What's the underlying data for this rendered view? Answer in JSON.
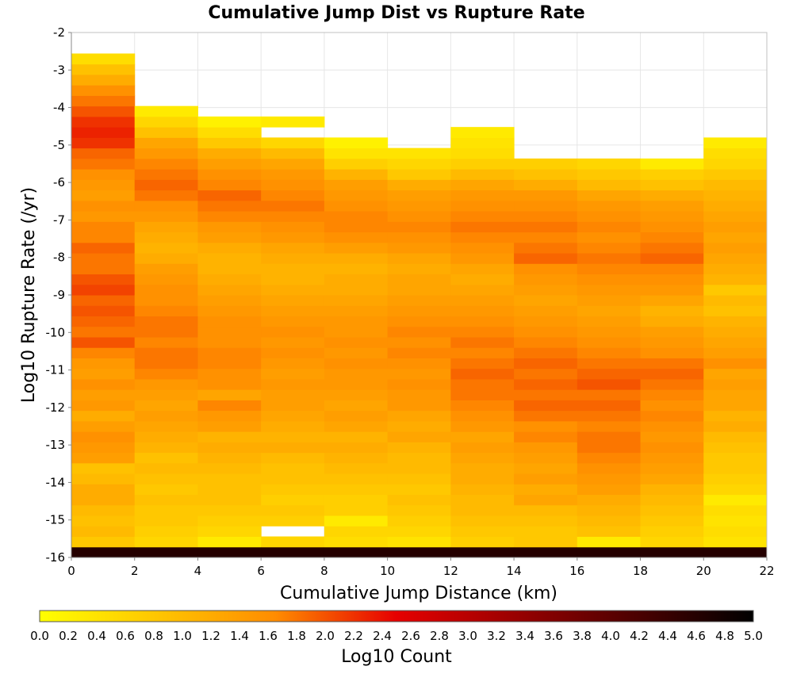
{
  "chart_data": {
    "type": "heatmap",
    "title": "Cumulative Jump Dist vs Rupture Rate",
    "xlabel": "Cumulative Jump Distance (km)",
    "ylabel": "Log10 Rupture Rate (/yr)",
    "colorbar_label": "Log10 Count",
    "xlim": [
      0,
      22
    ],
    "ylim": [
      -16,
      -2
    ],
    "xticks": [
      "0",
      "2",
      "4",
      "6",
      "8",
      "10",
      "12",
      "14",
      "16",
      "18",
      "20",
      "22"
    ],
    "yticks": [
      "-2",
      "-3",
      "-4",
      "-5",
      "-6",
      "-7",
      "-8",
      "-9",
      "-10",
      "-11",
      "-12",
      "-13",
      "-14",
      "-15",
      "-16"
    ],
    "colorbar_ticks": [
      "0.0",
      "0.2",
      "0.4",
      "0.6",
      "0.8",
      "1.0",
      "1.2",
      "1.4",
      "1.6",
      "1.8",
      "2.0",
      "2.2",
      "2.4",
      "2.6",
      "2.8",
      "3.0",
      "3.2",
      "3.4",
      "3.6",
      "3.8",
      "4.0",
      "4.2",
      "4.4",
      "4.6",
      "4.8",
      "5.0"
    ],
    "colorbar_range": [
      0,
      5
    ],
    "colorscale": [
      "#ffff00",
      "#ff8c00",
      "#e60000",
      "#000000"
    ],
    "grid": true,
    "x_bin_edges": [
      0,
      2,
      4,
      6,
      8,
      10,
      12,
      14,
      16,
      18,
      20,
      22
    ],
    "y_bin_width": 0.28,
    "y_bins_from": -16,
    "z_columns": [
      [
        4.6,
        0.8,
        1.0,
        0.9,
        1.0,
        1.2,
        1.2,
        1.0,
        0.9,
        1.4,
        1.5,
        1.6,
        1.4,
        1.2,
        1.5,
        1.4,
        1.6,
        1.4,
        1.5,
        1.7,
        2.0,
        1.8,
        1.9,
        2.0,
        1.9,
        2.1,
        2.0,
        1.8,
        1.8,
        1.9,
        1.7,
        1.7,
        1.5,
        1.6,
        1.4,
        1.5,
        1.6,
        1.8,
        1.9,
        2.2,
        2.3,
        2.2,
        2.0,
        1.8,
        1.6,
        1.2,
        0.9,
        0.5,
        null,
        null
      ],
      [
        4.6,
        0.6,
        0.7,
        0.8,
        0.8,
        0.9,
        0.8,
        0.9,
        1.0,
        0.9,
        1.1,
        1.2,
        1.3,
        1.4,
        1.3,
        1.4,
        1.5,
        1.7,
        1.8,
        1.8,
        1.7,
        1.8,
        1.8,
        1.7,
        1.6,
        1.6,
        1.5,
        1.4,
        1.2,
        1.1,
        1.2,
        1.3,
        1.5,
        1.6,
        1.8,
        1.9,
        1.8,
        1.7,
        1.5,
        1.3,
        0.9,
        0.6,
        0.3,
        null,
        null,
        null,
        null,
        null,
        null,
        null
      ],
      [
        4.6,
        0.3,
        0.6,
        0.7,
        0.8,
        0.9,
        0.9,
        0.9,
        1.0,
        1.1,
        1.2,
        1.1,
        1.4,
        1.5,
        1.7,
        1.3,
        1.6,
        1.6,
        1.7,
        1.7,
        1.6,
        1.6,
        1.6,
        1.5,
        1.4,
        1.3,
        1.2,
        1.1,
        1.1,
        1.2,
        1.4,
        1.5,
        1.7,
        1.8,
        1.9,
        1.7,
        1.6,
        1.4,
        1.2,
        0.8,
        0.5,
        0.2,
        null,
        null,
        null,
        null,
        null,
        null,
        null,
        null
      ],
      [
        4.6,
        0.6,
        null,
        0.7,
        0.8,
        0.7,
        0.8,
        0.9,
        0.9,
        1.0,
        1.2,
        1.1,
        1.2,
        1.3,
        1.4,
        1.4,
        1.5,
        1.4,
        1.5,
        1.6,
        1.5,
        1.6,
        1.5,
        1.4,
        1.3,
        1.2,
        1.1,
        1.1,
        1.2,
        1.3,
        1.5,
        1.6,
        1.7,
        1.8,
        1.7,
        1.6,
        1.5,
        1.3,
        1.0,
        0.6,
        null,
        0.3,
        null,
        null,
        null,
        null,
        null,
        null,
        null,
        null
      ],
      [
        4.6,
        0.5,
        0.6,
        0.3,
        0.7,
        0.7,
        0.8,
        0.9,
        1.0,
        1.1,
        1.2,
        1.1,
        1.3,
        1.4,
        1.3,
        1.4,
        1.5,
        1.5,
        1.6,
        1.5,
        1.6,
        1.5,
        1.5,
        1.4,
        1.3,
        1.2,
        1.2,
        1.1,
        1.2,
        1.4,
        1.6,
        1.7,
        1.7,
        1.6,
        1.5,
        1.4,
        1.1,
        0.7,
        0.4,
        0.2,
        null,
        null,
        null,
        null,
        null,
        null,
        null,
        null,
        null,
        null
      ],
      [
        4.6,
        0.4,
        0.6,
        0.7,
        0.8,
        0.9,
        0.8,
        0.9,
        1.0,
        1.0,
        1.1,
        1.3,
        1.2,
        1.3,
        1.5,
        1.5,
        1.6,
        1.5,
        1.6,
        1.7,
        1.6,
        1.7,
        1.6,
        1.5,
        1.4,
        1.3,
        1.3,
        1.2,
        1.3,
        1.5,
        1.6,
        1.7,
        1.6,
        1.5,
        1.4,
        1.2,
        0.8,
        0.6,
        0.4,
        null,
        null,
        null,
        null,
        null,
        null,
        null,
        null,
        null,
        null,
        null
      ],
      [
        4.6,
        0.7,
        0.8,
        0.9,
        1.0,
        1.0,
        1.1,
        1.2,
        1.2,
        1.3,
        1.4,
        1.3,
        1.5,
        1.6,
        1.7,
        1.8,
        1.8,
        1.9,
        1.8,
        1.7,
        1.8,
        1.7,
        1.6,
        1.5,
        1.4,
        1.3,
        1.2,
        1.3,
        1.5,
        1.6,
        1.7,
        1.8,
        1.7,
        1.6,
        1.5,
        1.3,
        1.0,
        0.7,
        0.5,
        0.4,
        0.3,
        null,
        null,
        null,
        null,
        null,
        null,
        null,
        null,
        null
      ],
      [
        4.6,
        0.8,
        0.8,
        0.9,
        1.0,
        1.3,
        1.2,
        1.4,
        1.3,
        1.4,
        1.5,
        1.7,
        1.6,
        1.8,
        1.9,
        1.8,
        1.9,
        1.8,
        1.9,
        1.8,
        1.7,
        1.6,
        1.5,
        1.4,
        1.3,
        1.4,
        1.5,
        1.6,
        1.9,
        1.8,
        1.7,
        1.8,
        1.7,
        1.6,
        1.5,
        1.2,
        0.9,
        0.7,
        null,
        null,
        null,
        null,
        null,
        null,
        null,
        null,
        null,
        null,
        null,
        null
      ],
      [
        4.6,
        0.3,
        0.9,
        1.0,
        1.1,
        1.2,
        1.4,
        1.5,
        1.6,
        1.7,
        1.8,
        1.8,
        1.7,
        1.8,
        1.9,
        1.8,
        2.0,
        1.9,
        1.8,
        1.7,
        1.6,
        1.5,
        1.4,
        1.3,
        1.4,
        1.5,
        1.6,
        1.7,
        1.8,
        1.7,
        1.6,
        1.7,
        1.6,
        1.5,
        1.3,
        1.0,
        0.8,
        0.6,
        null,
        null,
        null,
        null,
        null,
        null,
        null,
        null,
        null,
        null,
        null,
        null
      ],
      [
        4.6,
        0.6,
        0.7,
        0.8,
        0.9,
        1.0,
        1.1,
        1.3,
        1.4,
        1.5,
        1.6,
        1.5,
        1.6,
        1.7,
        1.6,
        1.7,
        1.8,
        1.9,
        1.8,
        1.6,
        1.5,
        1.4,
        1.2,
        1.1,
        1.3,
        1.5,
        1.6,
        1.7,
        1.9,
        1.8,
        1.7,
        1.6,
        1.5,
        1.4,
        1.2,
        0.9,
        0.7,
        0.3,
        null,
        null,
        null,
        null,
        null,
        null,
        null,
        null,
        null,
        null,
        null,
        null
      ],
      [
        4.6,
        0.4,
        0.5,
        0.4,
        0.5,
        0.3,
        0.6,
        0.7,
        0.8,
        0.8,
        0.9,
        1.0,
        1.2,
        1.1,
        1.3,
        1.3,
        1.4,
        1.3,
        1.6,
        1.4,
        1.3,
        1.2,
        1.1,
        0.9,
        1.0,
        0.8,
        1.1,
        1.2,
        1.3,
        1.4,
        1.3,
        1.4,
        1.3,
        1.2,
        1.1,
        1.0,
        0.8,
        0.6,
        0.5,
        0.3,
        null,
        null,
        null,
        null,
        null,
        null,
        null,
        null,
        null,
        null
      ]
    ]
  }
}
